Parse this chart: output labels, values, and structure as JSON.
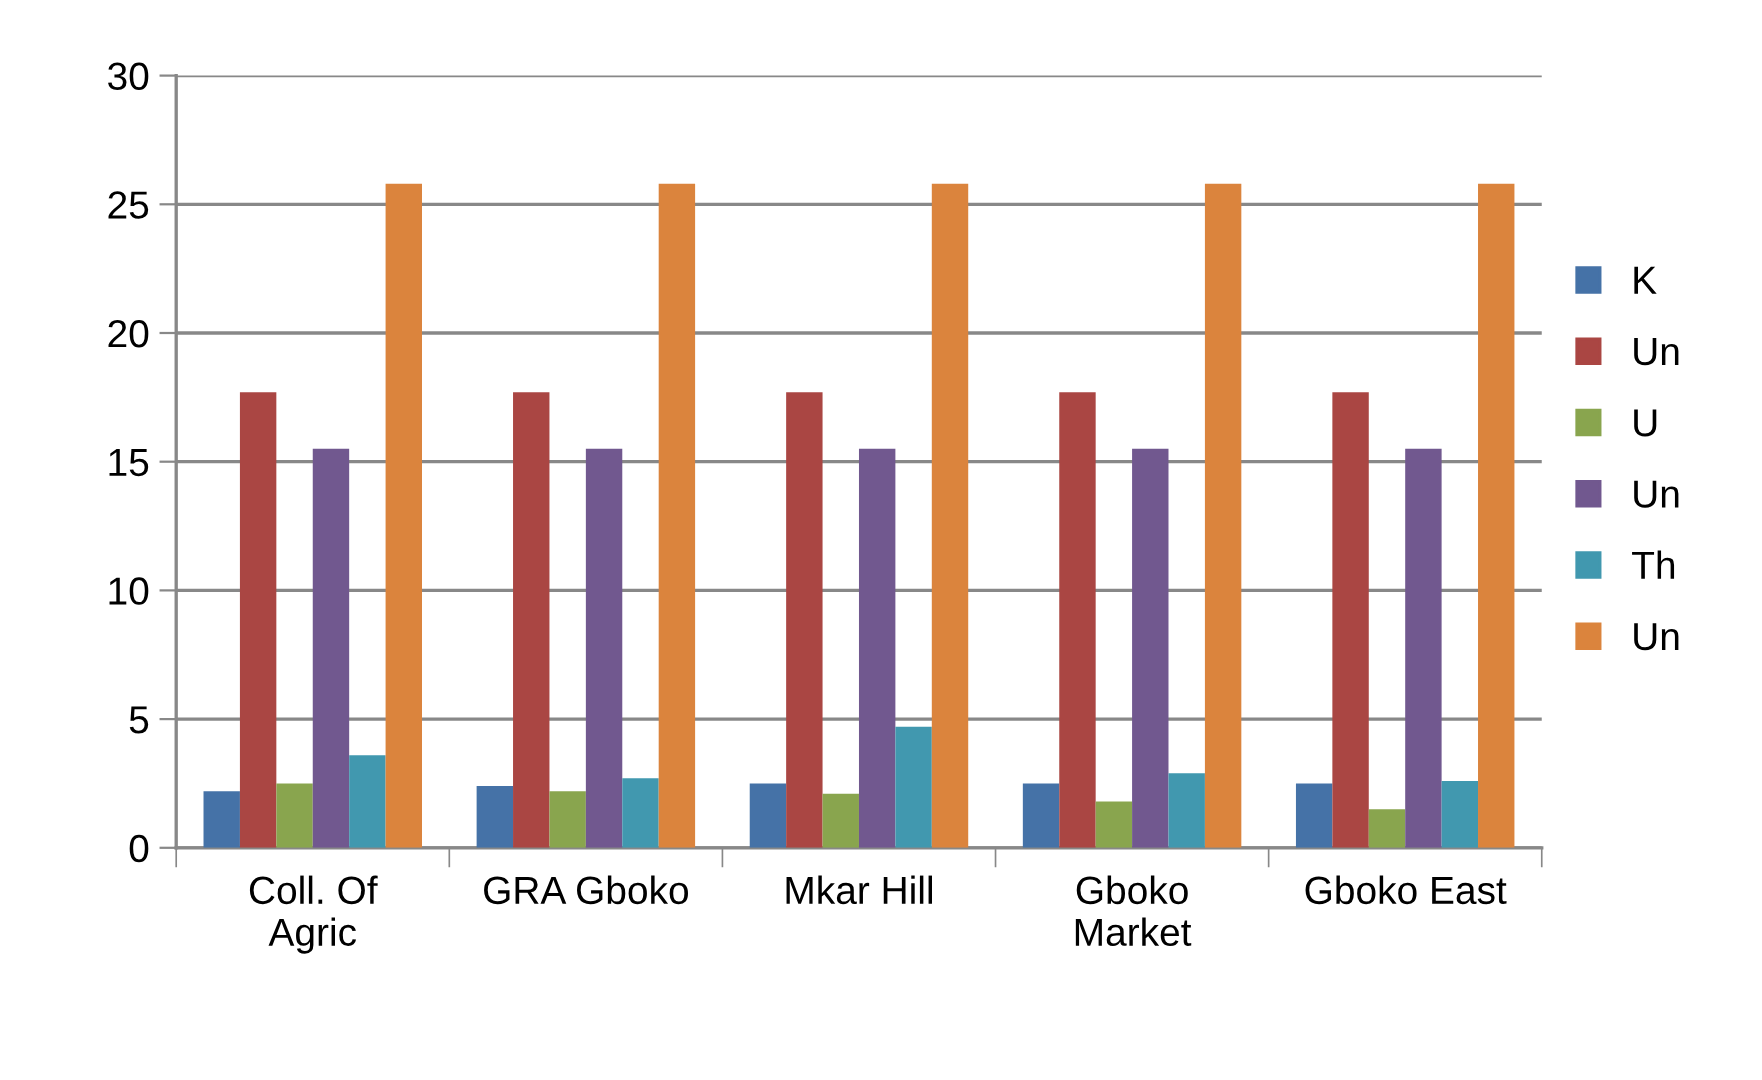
{
  "chart_data": {
    "type": "bar",
    "categories": [
      "Coll. Of\nAgric",
      "GRA Gboko",
      "Mkar Hill",
      "Gboko\nMarket",
      "Gboko East"
    ],
    "series": [
      {
        "name": "K",
        "color": "#4572a7",
        "values": [
          2.2,
          2.4,
          2.5,
          2.5,
          2.5
        ]
      },
      {
        "name": "Un",
        "color": "#aa4643",
        "values": [
          17.7,
          17.7,
          17.7,
          17.7,
          17.7
        ]
      },
      {
        "name": "U",
        "color": "#89a54e",
        "values": [
          2.5,
          2.2,
          2.1,
          1.8,
          1.5
        ]
      },
      {
        "name": "Un",
        "color": "#71588f",
        "values": [
          15.5,
          15.5,
          15.5,
          15.5,
          15.5
        ]
      },
      {
        "name": "Th",
        "color": "#4198af",
        "values": [
          3.6,
          2.7,
          4.7,
          2.9,
          2.6
        ]
      },
      {
        "name": "Un",
        "color": "#db843d",
        "values": [
          25.8,
          25.8,
          25.8,
          25.8,
          25.8
        ]
      }
    ],
    "ylim": [
      0,
      30
    ],
    "yticks": [
      0,
      5,
      10,
      15,
      20,
      25,
      30
    ],
    "grid": "y",
    "legend": "right"
  }
}
